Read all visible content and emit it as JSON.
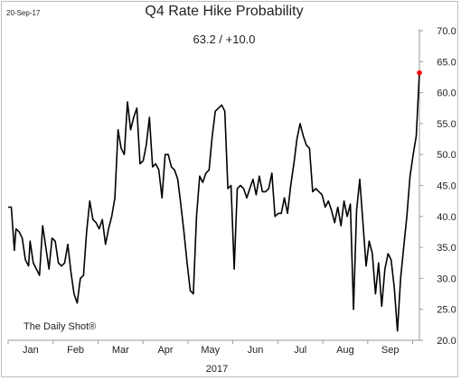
{
  "header": {
    "date_stamp": "20-Sep-17",
    "title": "Q4 Rate Hike Probability",
    "subtitle": "63.2  /  +10.0"
  },
  "footer": {
    "source": "The Daily Shot®",
    "year_label": "2017"
  },
  "colors": {
    "line": "#000000",
    "last_point": "#ff0000",
    "axis": "#9a9a9a",
    "frame": "#bfbfbf"
  },
  "chart_data": {
    "type": "line",
    "title": "Q4 Rate Hike Probability",
    "subtitle": "63.2  /  +10.0",
    "xlabel": "2017",
    "ylabel": "",
    "x_tick_labels": [
      "Jan",
      "Feb",
      "Mar",
      "Apr",
      "May",
      "Jun",
      "Jul",
      "Aug",
      "Sep"
    ],
    "y_ticks": [
      20.0,
      25.0,
      30.0,
      35.0,
      40.0,
      45.0,
      50.0,
      55.0,
      60.0,
      65.0,
      70.0
    ],
    "y_tick_labels": [
      "20.0",
      "25.0",
      "30.0",
      "35.0",
      "40.0",
      "45.0",
      "50.0",
      "55.0",
      "60.0",
      "65.0",
      "70.0"
    ],
    "ylim": [
      20,
      70
    ],
    "xlim": [
      0,
      262
    ],
    "y_axis_position": "right",
    "grid": false,
    "legend": "none",
    "last_value": 63.2,
    "change": 10.0,
    "series": [
      {
        "x": [
          0,
          2,
          4,
          5,
          7,
          9,
          11,
          13,
          14,
          16,
          18,
          20,
          22,
          24,
          26,
          28,
          30,
          32,
          34,
          36,
          38,
          40,
          42,
          44,
          46,
          48,
          50,
          52,
          54,
          56,
          58,
          60,
          62,
          64,
          66,
          68,
          70,
          72,
          74,
          76,
          78,
          80,
          82,
          84,
          86,
          88,
          90,
          92,
          94,
          96,
          98,
          100,
          102,
          104,
          106,
          108,
          110,
          112,
          114,
          116,
          118,
          120,
          122,
          124,
          126,
          128,
          130,
          132,
          134,
          136,
          138,
          140,
          142,
          144,
          146,
          148,
          150,
          152,
          154,
          156,
          158,
          160,
          162,
          164,
          166,
          168,
          170,
          172,
          174,
          176,
          178,
          180,
          182,
          184,
          186,
          188,
          190,
          192,
          194,
          196,
          198,
          200,
          202,
          204,
          206,
          208,
          210,
          212,
          214,
          216,
          218,
          220,
          222,
          224,
          226,
          228,
          230,
          232,
          234,
          236,
          238,
          240,
          242,
          244,
          246,
          248,
          250,
          252,
          254,
          256,
          258,
          260,
          262
        ],
        "values": [
          41.5,
          41.5,
          34.5,
          38.0,
          37.5,
          36.5,
          33.0,
          32.0,
          36.0,
          32.5,
          31.5,
          30.5,
          38.5,
          35.0,
          31.5,
          36.5,
          36.0,
          32.5,
          32.0,
          32.5,
          35.5,
          31.0,
          27.5,
          26.0,
          30.0,
          30.5,
          37.5,
          42.5,
          39.5,
          39.0,
          38.0,
          39.5,
          35.5,
          38.0,
          40.0,
          43.0,
          54.0,
          51.0,
          50.0,
          58.5,
          54.0,
          56.0,
          57.5,
          48.5,
          49.0,
          51.5,
          56.0,
          48.0,
          48.5,
          47.5,
          43.0,
          50.0,
          50.0,
          48.0,
          47.5,
          46.0,
          42.0,
          37.5,
          32.5,
          28.0,
          27.5,
          40.0,
          46.5,
          45.5,
          47.0,
          47.5,
          53.0,
          57.0,
          57.5,
          58.0,
          57.0,
          44.5,
          45.0,
          31.5,
          44.5,
          45.0,
          44.5,
          43.0,
          44.5,
          46.0,
          43.5,
          46.5,
          44.0,
          44.0,
          44.5,
          47.0,
          40.0,
          40.5,
          40.5,
          43.0,
          40.5,
          45.0,
          48.5,
          52.5,
          55.0,
          53.0,
          51.5,
          51.0,
          44.0,
          44.5,
          44.0,
          43.5,
          41.5,
          42.5,
          41.0,
          39.0,
          41.5,
          38.5,
          42.5,
          40.0,
          42.0,
          25.0,
          41.0,
          46.0,
          39.0,
          32.0,
          36.0,
          34.0,
          27.5,
          32.5,
          25.5,
          31.5,
          34.0,
          33.0,
          28.5,
          21.5,
          30.0,
          35.0,
          40.0,
          46.5,
          50.0,
          53.0,
          63.2
        ]
      }
    ]
  }
}
